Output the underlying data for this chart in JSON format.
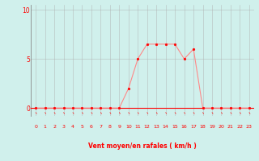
{
  "x": [
    0,
    1,
    2,
    3,
    4,
    5,
    6,
    7,
    8,
    9,
    10,
    11,
    12,
    13,
    14,
    15,
    16,
    17,
    18,
    19,
    20,
    21,
    22,
    23
  ],
  "y": [
    0,
    0,
    0,
    0,
    0,
    0,
    0,
    0,
    0,
    0,
    2,
    5,
    6.5,
    6.5,
    6.5,
    6.5,
    5,
    6,
    0,
    0,
    0,
    0,
    0,
    0
  ],
  "bg_color": "#d0f0ec",
  "line_color": "#ff8888",
  "marker_color": "#ff0000",
  "grid_color": "#b0b0b0",
  "axis_color": "#ff0000",
  "xlabel": "Vent moyen/en rafales ( km/h )",
  "xlim": [
    -0.5,
    23.5
  ],
  "ylim": [
    -0.8,
    10.5
  ],
  "yticks": [
    0,
    5,
    10
  ],
  "xticks": [
    0,
    1,
    2,
    3,
    4,
    5,
    6,
    7,
    8,
    9,
    10,
    11,
    12,
    13,
    14,
    15,
    16,
    17,
    18,
    19,
    20,
    21,
    22,
    23
  ]
}
